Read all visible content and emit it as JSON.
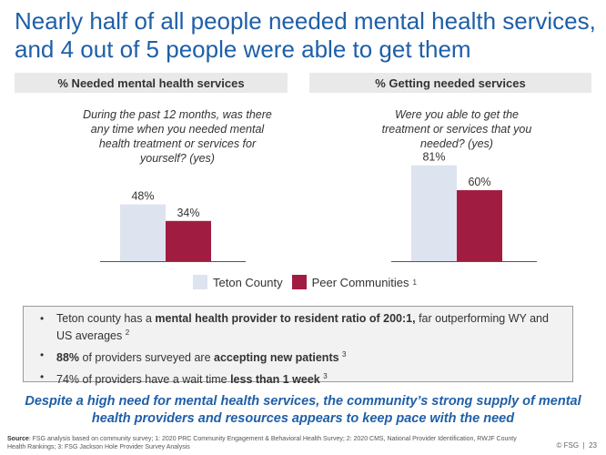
{
  "title": "Nearly half of all people needed mental health services, and 4 out of 5 people were able to get them",
  "panels": [
    {
      "header": "% Needed mental health services",
      "question": "During the past 12 months, was there any time when you needed mental health treatment or services for yourself? (yes)"
    },
    {
      "header": "% Getting needed services",
      "question": "Were you able to get the treatment or services that you needed? (yes)"
    }
  ],
  "chart_data": [
    {
      "type": "bar",
      "title": "% Needed mental health services",
      "categories": [
        "Teton County",
        "Peer Communities"
      ],
      "values": [
        48,
        34
      ],
      "value_labels": [
        "48%",
        "34%"
      ],
      "ylim": [
        0,
        100
      ],
      "grid": false
    },
    {
      "type": "bar",
      "title": "% Getting needed services",
      "categories": [
        "Teton County",
        "Peer Communities"
      ],
      "values": [
        81,
        60
      ],
      "value_labels": [
        "81%",
        "60%"
      ],
      "ylim": [
        0,
        100
      ],
      "grid": false
    }
  ],
  "legend": {
    "items": [
      {
        "label": "Teton County",
        "color": "#dde3ef",
        "sup": ""
      },
      {
        "label": "Peer Communities",
        "color": "#a01d41",
        "sup": "1"
      }
    ]
  },
  "bullets": {
    "b1_pre": "Teton county has a ",
    "b1_bold": "mental health provider to resident ratio of 200:1,",
    "b1_post": " far outperforming WY and US averages",
    "b1_sup": "2",
    "b2_bold1": "88%",
    "b2_mid": " of providers surveyed are ",
    "b2_bold2": "accepting new patients",
    "b2_sup": "3",
    "b3_pre": "74% of providers have a wait time ",
    "b3_bold": "less than 1 week",
    "b3_sup": "3"
  },
  "conclusion": "Despite a high need for mental health services, the community’s strong supply of mental health providers and resources appears to keep pace with the need",
  "source": {
    "label": "Source",
    "text": ": FSG analysis based on community survey; 1: 2020 PRC Community Engagement & Behavioral Health Survey; 2: 2020 CMS, National Provider Identification, RWJF County Health Rankings; 3: FSG Jackson Hole Provider Survey Analysis"
  },
  "footer": {
    "brand": "© FSG",
    "separator": "|",
    "page": "23"
  },
  "colors": {
    "title": "#1f5fa8",
    "teton": "#dde3ef",
    "peer": "#a01d41"
  }
}
